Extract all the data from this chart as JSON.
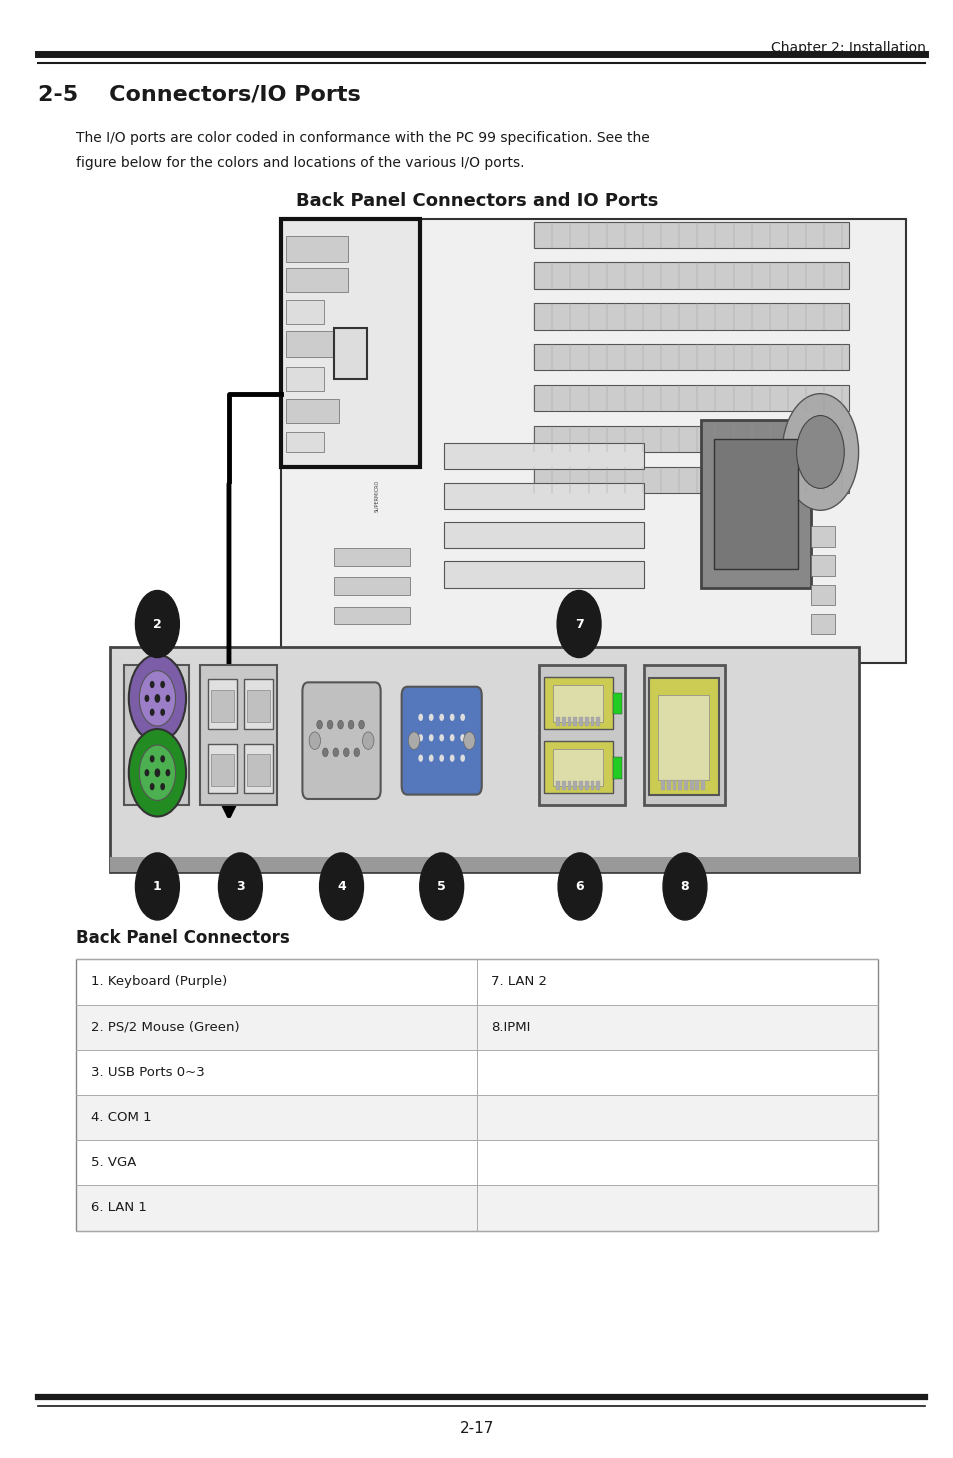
{
  "page_title": "Chapter 2: Installation",
  "section_title": "2-5    Connectors/IO Ports",
  "body_line1": "The I/O ports are color coded in conformance with the PC 99 specification. See the",
  "body_line2": "figure below for the colors and locations of the various I/O ports.",
  "panel_title": "Back Panel Connectors and IO Ports",
  "back_panel_title": "Back Panel Connectors",
  "table_rows": [
    [
      "1. Keyboard (Purple)",
      "7. LAN 2"
    ],
    [
      "2. PS/2 Mouse (Green)",
      "8.IPMI"
    ],
    [
      "3. USB Ports 0~3",
      ""
    ],
    [
      "4. COM 1",
      ""
    ],
    [
      "5. VGA",
      ""
    ],
    [
      "6. LAN 1",
      ""
    ]
  ],
  "page_number": "2-17",
  "bg_color": "#ffffff",
  "text_color": "#1a1a1a",
  "line_color": "#1a1a1a",
  "table_line_color": "#aaaaaa",
  "circle_color": "#1a1a1a",
  "circle_text_color": "#ffffff"
}
